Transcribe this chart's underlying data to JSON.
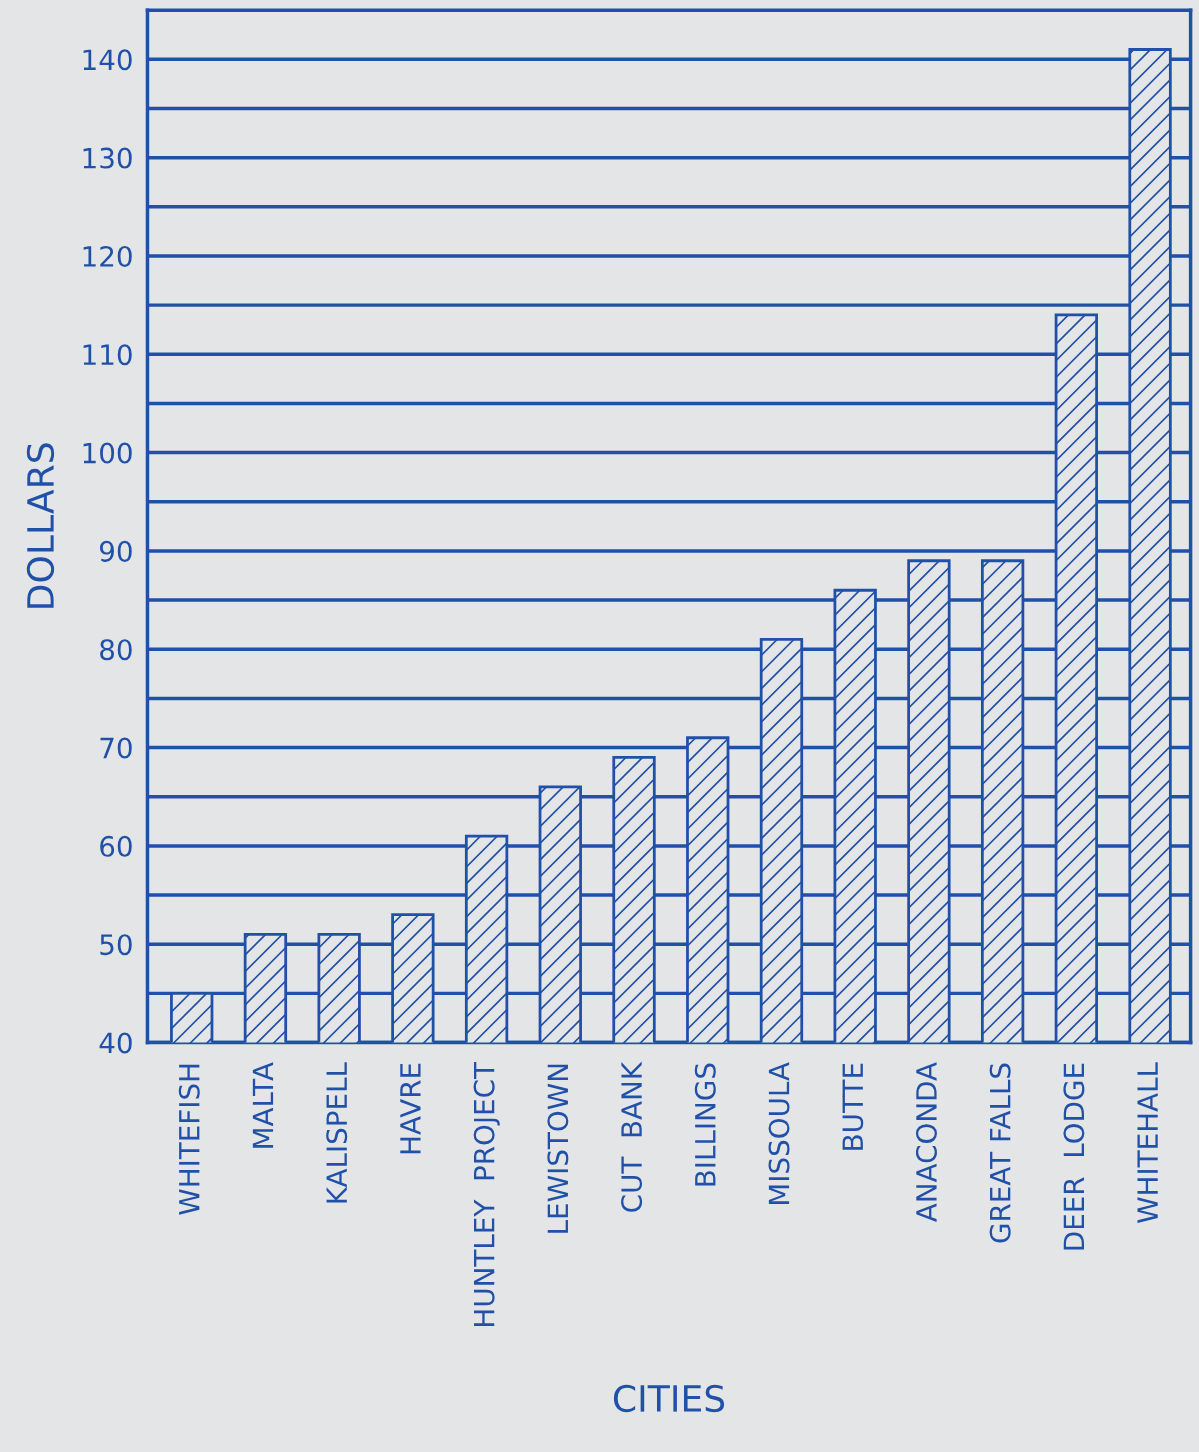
{
  "chart_data": {
    "type": "bar",
    "xlabel": "CITIES",
    "ylabel": "DOLLARS",
    "categories": [
      "WHITEFISH",
      "MALTA",
      "KALISPELL",
      "HAVRE",
      "HUNTLEY  PROJECT",
      "LEWISTOWN",
      "CUT  BANK",
      "BILLINGS",
      "MISSOULA",
      "BUTTE",
      "ANACONDA",
      "GREAT FALLS",
      "DEER  LODGE",
      "WHITEHALL"
    ],
    "values": [
      45,
      51,
      51,
      53,
      61,
      66,
      69,
      71,
      81,
      86,
      89,
      89,
      114,
      141
    ],
    "color": "#2050a8",
    "ylim": [
      40,
      145
    ],
    "yticks": [
      40,
      {
        "value": 45,
        "label": null
      },
      50,
      {
        "value": 55,
        "label": null
      },
      60,
      {
        "value": 65,
        "label": null
      },
      70,
      {
        "value": 75,
        "label": null
      },
      80,
      {
        "value": 85,
        "label": null
      },
      90,
      {
        "value": 95,
        "label": null
      },
      100,
      {
        "value": 105,
        "label": null
      },
      110,
      {
        "value": 115,
        "label": null
      },
      120,
      {
        "value": 125,
        "label": null
      },
      130,
      {
        "value": 135,
        "label": null
      },
      140,
      {
        "value": 145,
        "label": null
      }
    ],
    "grid": "y"
  }
}
